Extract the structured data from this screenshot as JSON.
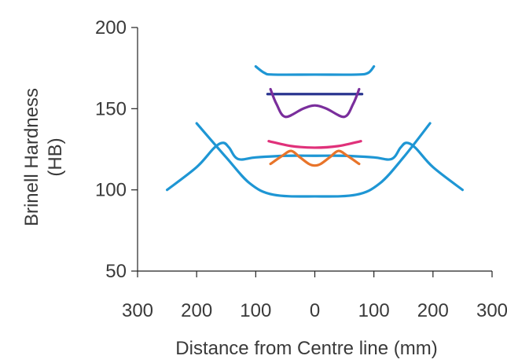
{
  "chart_data": {
    "type": "line",
    "title": "",
    "xlabel": "Distance from Centre line (mm)",
    "ylabel_line1": "Brinell Hardness",
    "ylabel_line2": "(HB)",
    "xlim": [
      -300,
      300
    ],
    "ylim": [
      50,
      200
    ],
    "x_ticks": [
      -300,
      -200,
      -100,
      0,
      100,
      200,
      300
    ],
    "x_tick_labels": [
      "300",
      "200",
      "100",
      "0",
      "100",
      "200",
      "300"
    ],
    "y_ticks": [
      50,
      100,
      150,
      200
    ],
    "y_tick_labels": [
      "50",
      "100",
      "150",
      "200"
    ],
    "grid": false,
    "series": [
      {
        "color": "#1e96d4",
        "points": [
          [
            -250,
            100
          ],
          [
            -200,
            114
          ],
          [
            -170,
            126
          ],
          [
            -155,
            129
          ],
          [
            -145,
            126
          ],
          [
            -130,
            119
          ],
          [
            -100,
            120
          ],
          [
            -50,
            121
          ],
          [
            0,
            121
          ],
          [
            50,
            121
          ],
          [
            100,
            120
          ],
          [
            130,
            119
          ],
          [
            145,
            126
          ],
          [
            155,
            129
          ],
          [
            170,
            126
          ],
          [
            200,
            114
          ],
          [
            250,
            100
          ]
        ]
      },
      {
        "color": "#1e96d4",
        "points": [
          [
            -200,
            141
          ],
          [
            -150,
            120
          ],
          [
            -110,
            104
          ],
          [
            -70,
            97
          ],
          [
            0,
            96
          ],
          [
            70,
            97
          ],
          [
            110,
            104
          ],
          [
            150,
            120
          ],
          [
            195,
            141
          ]
        ]
      },
      {
        "color": "#1e96d4",
        "points": [
          [
            -100,
            176
          ],
          [
            -85,
            172
          ],
          [
            -70,
            171
          ],
          [
            0,
            171
          ],
          [
            70,
            171
          ],
          [
            90,
            172
          ],
          [
            100,
            176
          ]
        ]
      },
      {
        "color": "#2a3590",
        "points": [
          [
            -80,
            159
          ],
          [
            80,
            159
          ]
        ]
      },
      {
        "color": "#7a2e9c",
        "points": [
          [
            -75,
            162
          ],
          [
            -65,
            153
          ],
          [
            -50,
            145
          ],
          [
            -20,
            150
          ],
          [
            0,
            152
          ],
          [
            20,
            150
          ],
          [
            50,
            145
          ],
          [
            65,
            153
          ],
          [
            75,
            162
          ]
        ]
      },
      {
        "color": "#e0317a",
        "points": [
          [
            -78,
            130
          ],
          [
            -40,
            127
          ],
          [
            0,
            126
          ],
          [
            40,
            127
          ],
          [
            78,
            130
          ]
        ]
      },
      {
        "color": "#e8742a",
        "points": [
          [
            -75,
            116
          ],
          [
            -55,
            121
          ],
          [
            -40,
            124
          ],
          [
            -25,
            120
          ],
          [
            -10,
            116
          ],
          [
            0,
            115
          ],
          [
            10,
            116
          ],
          [
            25,
            120
          ],
          [
            40,
            124
          ],
          [
            55,
            121
          ],
          [
            75,
            116
          ]
        ]
      }
    ]
  }
}
